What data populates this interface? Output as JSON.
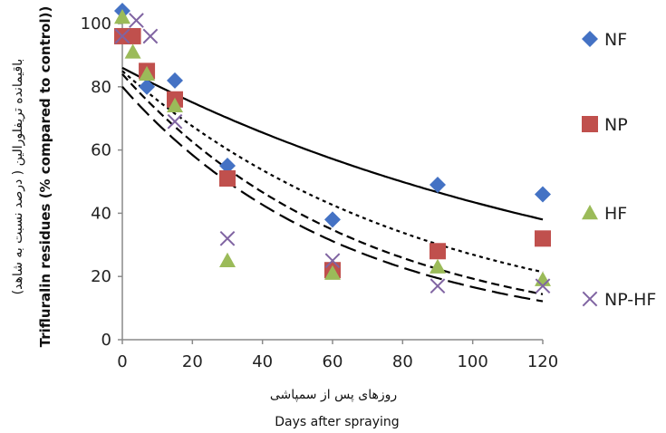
{
  "chart_data": {
    "type": "scatter",
    "xlabel": "Days after spraying",
    "xlabel_secondary": "روزهای پس از سمپاشی",
    "ylabel": "Trifluralin residues (% compared to control))",
    "ylabel_secondary": "باقیمانده تریفلورالین ( درصد نسبت به شاهد)",
    "xlim": [
      0,
      120
    ],
    "ylim": [
      0,
      100
    ],
    "x_ticks": [
      "0",
      "20",
      "40",
      "60",
      "80",
      "100",
      "120"
    ],
    "y_ticks": [
      "0",
      "20",
      "40",
      "60",
      "80",
      "100"
    ],
    "grid": false,
    "legend_position": "right",
    "series": [
      {
        "name": "NF",
        "marker": "diamond",
        "color": "#4472c4",
        "points": [
          [
            0,
            104
          ],
          [
            3,
            96
          ],
          [
            7,
            80
          ],
          [
            15,
            82
          ],
          [
            30,
            55
          ],
          [
            60,
            38
          ],
          [
            90,
            49
          ],
          [
            120,
            46
          ]
        ],
        "trend": {
          "a": 86,
          "k": 0.0068,
          "style": "solid"
        }
      },
      {
        "name": "NP",
        "marker": "square",
        "color": "#c0504d",
        "points": [
          [
            0,
            96
          ],
          [
            3,
            96
          ],
          [
            7,
            85
          ],
          [
            15,
            76
          ],
          [
            30,
            51
          ],
          [
            60,
            22
          ],
          [
            90,
            28
          ],
          [
            120,
            32
          ]
        ],
        "trend": {
          "a": 85,
          "k": 0.0115,
          "style": "short-dash"
        }
      },
      {
        "name": "HF",
        "marker": "triangle",
        "color": "#9bbb59",
        "points": [
          [
            0,
            102
          ],
          [
            3,
            91
          ],
          [
            7,
            84
          ],
          [
            15,
            74
          ],
          [
            30,
            25
          ],
          [
            60,
            21
          ],
          [
            90,
            23
          ],
          [
            120,
            19
          ]
        ],
        "trend": {
          "a": 84,
          "k": 0.0147,
          "style": "dash"
        }
      },
      {
        "name": "NP-HF",
        "marker": "cross",
        "color": "#8064a2",
        "points": [
          [
            0,
            96
          ],
          [
            4,
            101
          ],
          [
            8,
            96
          ],
          [
            15,
            69
          ],
          [
            30,
            32
          ],
          [
            60,
            25
          ],
          [
            90,
            17
          ],
          [
            120,
            17
          ]
        ],
        "trend": {
          "a": 80,
          "k": 0.0157,
          "style": "long-dash"
        }
      }
    ]
  }
}
